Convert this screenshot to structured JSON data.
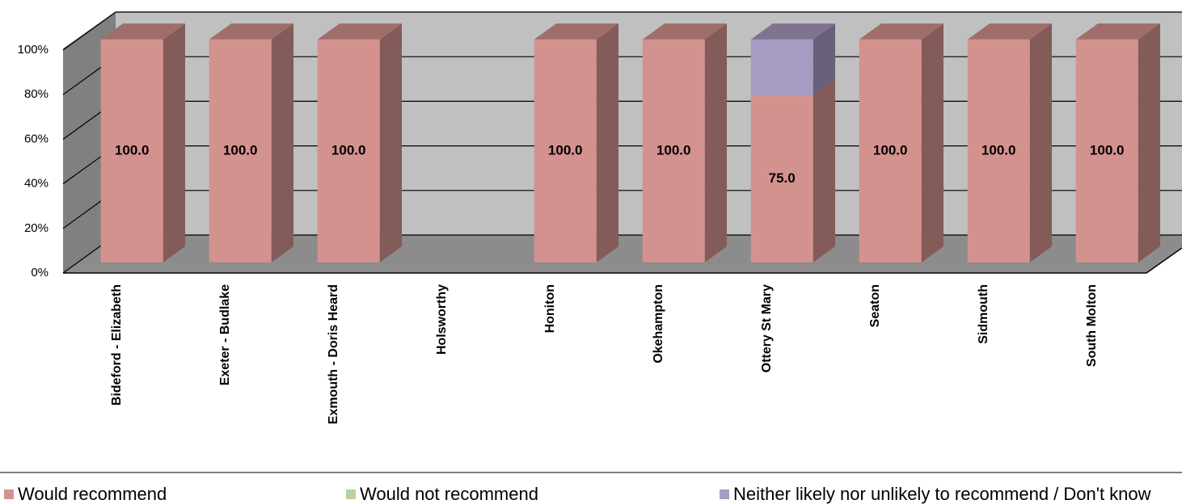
{
  "chart_data": {
    "type": "bar3d_stacked",
    "categories": [
      "Bideford - Elizabeth",
      "Exeter - Budlake",
      "Exmouth - Doris Heard",
      "Holsworthy",
      "Honiton",
      "Okehampton",
      "Ottery St Mary",
      "Seaton",
      "Sidmouth",
      "South Molton"
    ],
    "series": [
      {
        "name": "Would recommend",
        "color": "#d4928f",
        "values": [
          100,
          100,
          100,
          null,
          100,
          100,
          75,
          100,
          100,
          100
        ],
        "value_labels": [
          "100.0",
          "100.0",
          "100.0",
          null,
          "100.0",
          "100.0",
          "75.0",
          "100.0",
          "100.0",
          "100.0"
        ]
      },
      {
        "name": "Would not recommend",
        "color": "#b5d39a",
        "values": [
          0,
          0,
          0,
          null,
          0,
          0,
          0,
          0,
          0,
          0
        ]
      },
      {
        "name": "Neither likely nor unlikely to recommend / Don't know",
        "color": "#a89bc2",
        "values": [
          0,
          0,
          0,
          null,
          0,
          0,
          25,
          0,
          0,
          0
        ]
      }
    ],
    "ylim": [
      0,
      100
    ],
    "yticks": [
      {
        "value": 0,
        "label": "0%"
      },
      {
        "value": 20,
        "label": "20%"
      },
      {
        "value": 40,
        "label": "40%"
      },
      {
        "value": 60,
        "label": "60%"
      },
      {
        "value": 80,
        "label": "80%"
      },
      {
        "value": 100,
        "label": "100%"
      }
    ],
    "grid": true
  }
}
